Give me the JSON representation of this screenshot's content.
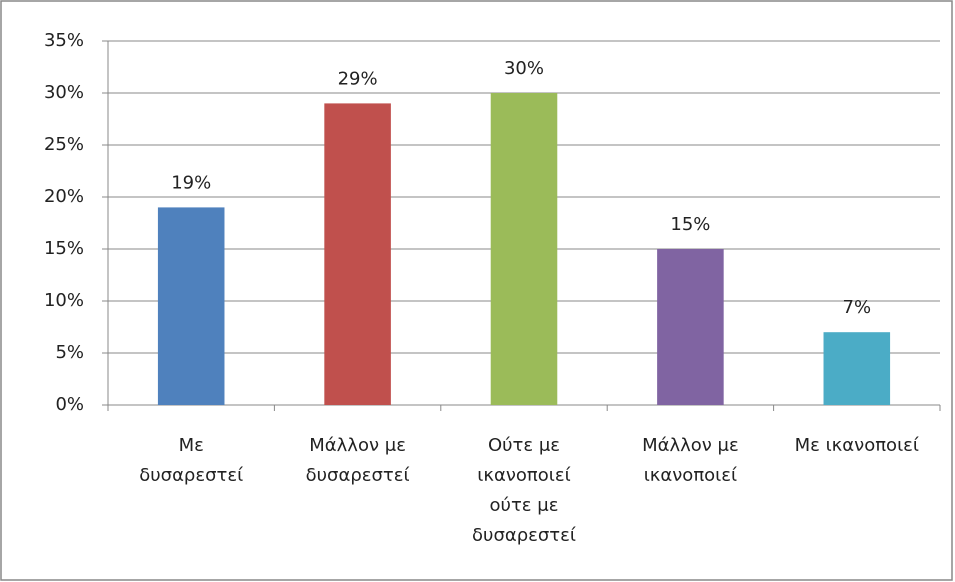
{
  "chart_data": {
    "type": "bar",
    "categories": [
      "Με δυσαρεστεί",
      "Μάλλον με δυσαρεστεί",
      "Ούτε με ικανοποιεί ούτε με δυσαρεστεί",
      "Μάλλον με ικανοποιεί",
      "Με ικανοποιεί"
    ],
    "values": [
      19,
      29,
      30,
      15,
      7
    ],
    "value_labels": [
      "19%",
      "29%",
      "30%",
      "15%",
      "7%"
    ],
    "colors": [
      "#4f81bd",
      "#c0504d",
      "#9bbb59",
      "#8064a2",
      "#4bacc6"
    ],
    "ylim": [
      0,
      35
    ],
    "yticks": [
      {
        "value": 0,
        "label": "0%"
      },
      {
        "value": 5,
        "label": "5%"
      },
      {
        "value": 10,
        "label": "10%"
      },
      {
        "value": 15,
        "label": "15%"
      },
      {
        "value": 20,
        "label": "20%"
      },
      {
        "value": 25,
        "label": "25%"
      },
      {
        "value": 30,
        "label": "30%"
      },
      {
        "value": 35,
        "label": "35%"
      }
    ],
    "grid": true
  }
}
